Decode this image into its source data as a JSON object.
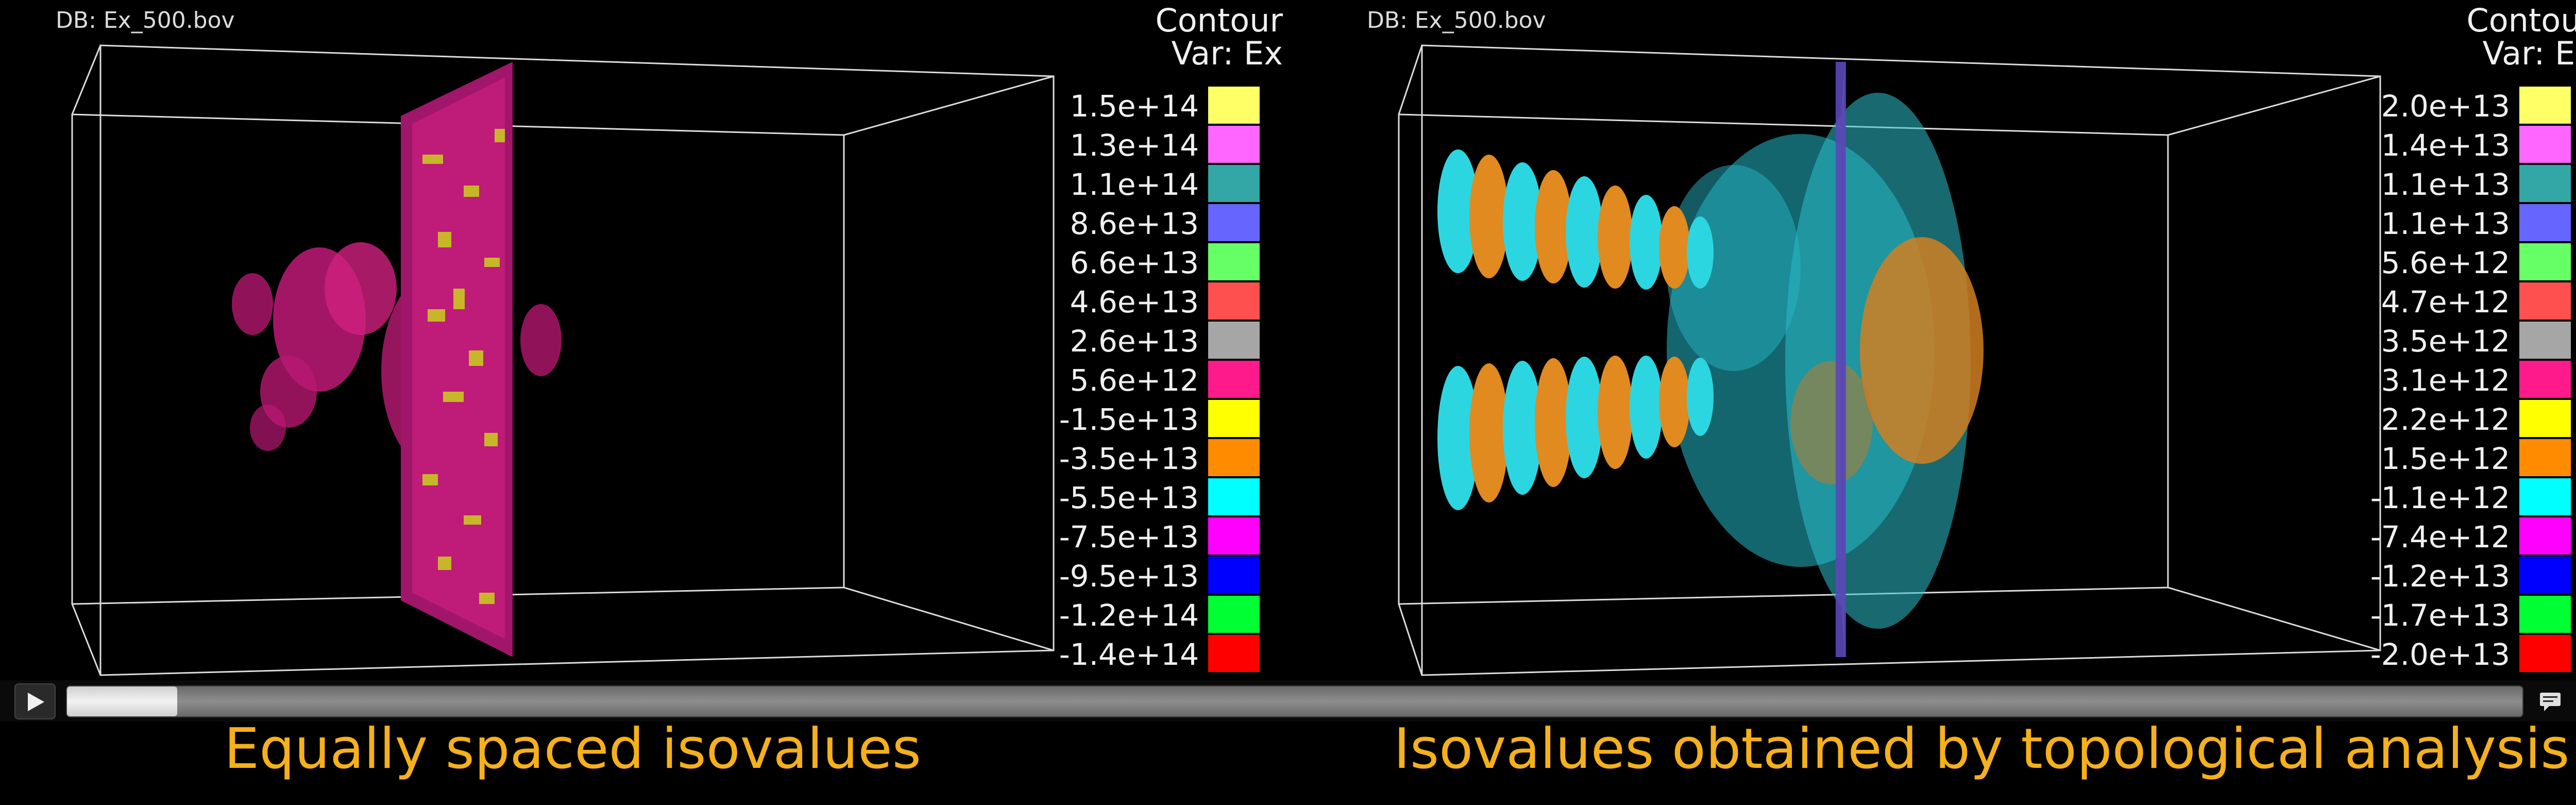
{
  "colors": {
    "caption": "#f5b01b",
    "background": "#000000"
  },
  "panels": {
    "left": {
      "db_label": "DB: Ex_500.bov",
      "legend_title_1": "Contour",
      "legend_title_2": "Var: Ex",
      "legend": [
        {
          "label": "1.5e+14",
          "color": "#ffff66"
        },
        {
          "label": "1.3e+14",
          "color": "#ff66ff"
        },
        {
          "label": "1.1e+14",
          "color": "#33a6a6"
        },
        {
          "label": "8.6e+13",
          "color": "#6666ff"
        },
        {
          "label": "6.6e+13",
          "color": "#66ff66"
        },
        {
          "label": "4.6e+13",
          "color": "#ff5050"
        },
        {
          "label": "2.6e+13",
          "color": "#a6a6a6"
        },
        {
          "label": "5.6e+12",
          "color": "#ff1a8c"
        },
        {
          "label": "-1.5e+13",
          "color": "#ffff00"
        },
        {
          "label": "-3.5e+13",
          "color": "#ff8c00"
        },
        {
          "label": "-5.5e+13",
          "color": "#00ffff"
        },
        {
          "label": "-7.5e+13",
          "color": "#ff00ff"
        },
        {
          "label": "-9.5e+13",
          "color": "#0000ff"
        },
        {
          "label": "-1.2e+14",
          "color": "#00ff33"
        },
        {
          "label": "-1.4e+14",
          "color": "#ff0000"
        }
      ]
    },
    "right": {
      "db_label": "DB: Ex_500.bov",
      "legend_title_1": "Contour",
      "legend_title_2": "Var: Ex",
      "legend": [
        {
          "label": "2.0e+13",
          "color": "#ffff66"
        },
        {
          "label": "1.4e+13",
          "color": "#ff66ff"
        },
        {
          "label": "1.1e+13",
          "color": "#33a6a6"
        },
        {
          "label": "1.1e+13",
          "color": "#6666ff"
        },
        {
          "label": "5.6e+12",
          "color": "#66ff66"
        },
        {
          "label": "4.7e+12",
          "color": "#ff5050"
        },
        {
          "label": "3.5e+12",
          "color": "#a6a6a6"
        },
        {
          "label": "3.1e+12",
          "color": "#ff1a8c"
        },
        {
          "label": "2.2e+12",
          "color": "#ffff00"
        },
        {
          "label": "1.5e+12",
          "color": "#ff8c00"
        },
        {
          "label": "-1.1e+12",
          "color": "#00ffff"
        },
        {
          "label": "-7.4e+12",
          "color": "#ff00ff"
        },
        {
          "label": "-1.2e+13",
          "color": "#0000ff"
        },
        {
          "label": "-1.7e+13",
          "color": "#00ff33"
        },
        {
          "label": "-2.0e+13",
          "color": "#ff0000"
        }
      ]
    }
  },
  "player": {
    "play_icon": "play-icon",
    "captions_icon": "captions-icon",
    "volume_icon": "volume-icon",
    "progress": 0.045
  },
  "captions": {
    "left": "Equally spaced isovalues",
    "right": "Isovalues obtained by topological analysis"
  }
}
